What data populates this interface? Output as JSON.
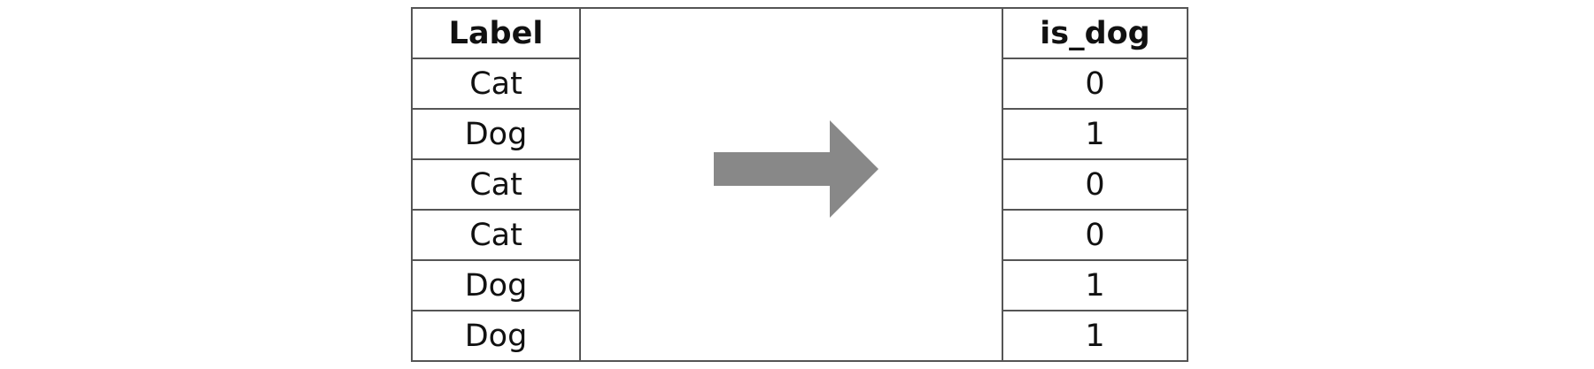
{
  "left_table": {
    "header": "Label",
    "rows": [
      "Cat",
      "Dog",
      "Cat",
      "Cat",
      "Dog",
      "Dog"
    ]
  },
  "right_table": {
    "header": "is_dog",
    "rows": [
      "0",
      "1",
      "0",
      "0",
      "1",
      "1"
    ]
  },
  "arrow": {
    "icon": "right-arrow-icon",
    "color": "#888888"
  },
  "colors": {
    "border": "#555555",
    "text": "#111111",
    "background": "#ffffff"
  }
}
